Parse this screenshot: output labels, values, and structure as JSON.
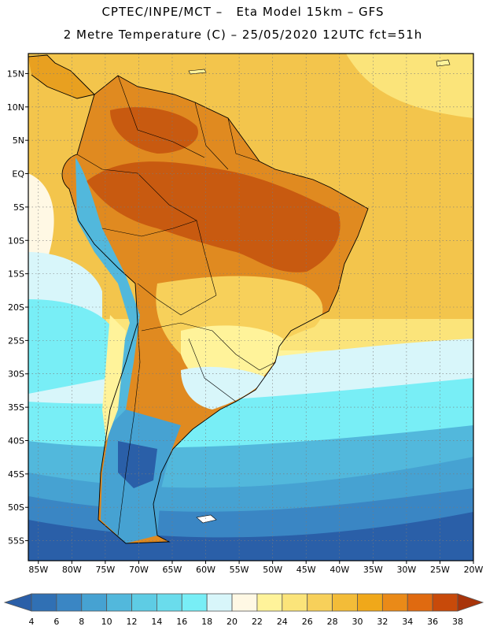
{
  "header": {
    "line1": "CPTEC/INPE/MCT –   Eta Model 15km – GFS",
    "line2": "2 Metre Temperature (C) – 25/05/2020 12UTC fct=51h"
  },
  "map": {
    "lat_labels": [
      "15N",
      "10N",
      "5N",
      "EQ",
      "5S",
      "10S",
      "15S",
      "20S",
      "25S",
      "30S",
      "35S",
      "40S",
      "45S",
      "50S",
      "55S"
    ],
    "lon_labels": [
      "85W",
      "80W",
      "75W",
      "70W",
      "65W",
      "60W",
      "55W",
      "50W",
      "45W",
      "40W",
      "35W",
      "30W",
      "25W",
      "20W"
    ],
    "lat_range": [
      18,
      -58
    ],
    "lon_range": [
      -86.5,
      -20
    ]
  },
  "colorbar": {
    "values": [
      "4",
      "6",
      "8",
      "10",
      "12",
      "14",
      "16",
      "18",
      "20",
      "22",
      "24",
      "26",
      "28",
      "30",
      "32",
      "34",
      "36",
      "38"
    ],
    "colors": [
      "#2a5fa8",
      "#3070b4",
      "#3a86c4",
      "#46a2d2",
      "#52b8dc",
      "#5ecce4",
      "#6adcec",
      "#78eef6",
      "#d8f6fa",
      "#fff8e4",
      "#fff39a",
      "#fbe47a",
      "#f7d05a",
      "#f3bc38",
      "#f0a81a",
      "#ea8a18",
      "#e06a10",
      "#c84a0a",
      "#a8340a"
    ]
  }
}
